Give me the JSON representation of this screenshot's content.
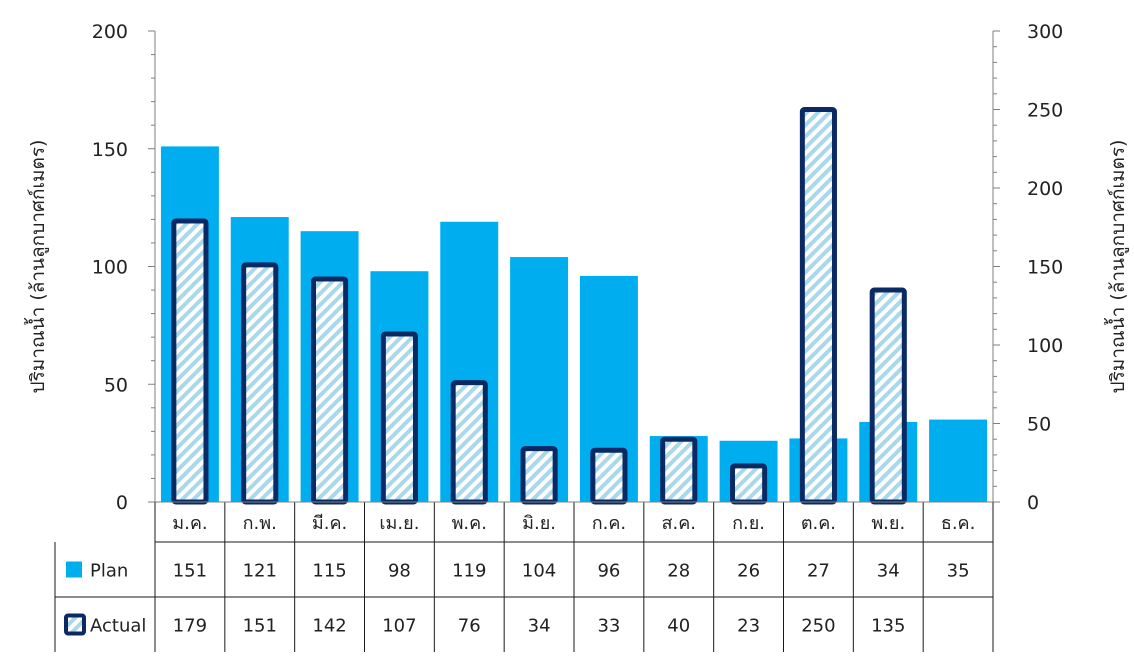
{
  "chart_data": {
    "type": "bar",
    "categories": [
      "ม.ค.",
      "ก.พ.",
      "มี.ค.",
      "เม.ย.",
      "พ.ค.",
      "มิ.ย.",
      "ก.ค.",
      "ส.ค.",
      "ก.ย.",
      "ต.ค.",
      "พ.ย.",
      "ธ.ค."
    ],
    "series": [
      {
        "name": "Plan",
        "axis": "left",
        "color": "#00aeef",
        "values": [
          151,
          121,
          115,
          98,
          119,
          104,
          96,
          28,
          26,
          27,
          34,
          35
        ]
      },
      {
        "name": "Actual",
        "axis": "right",
        "color": "#a9d8ea",
        "border_color": "#0b2a63",
        "pattern": "diagonal-stripes",
        "values": [
          179,
          151,
          142,
          107,
          76,
          34,
          33,
          40,
          23,
          250,
          135,
          null
        ]
      }
    ],
    "ylabel": "ปริมาณน้ำ (ล้านลูกบาศก์เมตร)",
    "ylabel_right": "ปริมาณน้ำ (ล้านลูกบาศก์เมตร)",
    "ylim": [
      0,
      200
    ],
    "ylim_right": [
      0,
      300
    ],
    "yticks": [
      "0",
      "50",
      "100",
      "150",
      "200"
    ],
    "yticks_right": [
      "0",
      "50",
      "100",
      "150",
      "200",
      "250",
      "300"
    ],
    "table": {
      "rows": [
        {
          "label": "Plan",
          "cells": [
            "151",
            "121",
            "115",
            "98",
            "119",
            "104",
            "96",
            "28",
            "26",
            "27",
            "34",
            "35"
          ]
        },
        {
          "label": "Actual",
          "cells": [
            "179",
            "151",
            "142",
            "107",
            "76",
            "34",
            "33",
            "40",
            "23",
            "250",
            "135",
            ""
          ]
        }
      ]
    },
    "grid": false,
    "legend": "data-table"
  }
}
